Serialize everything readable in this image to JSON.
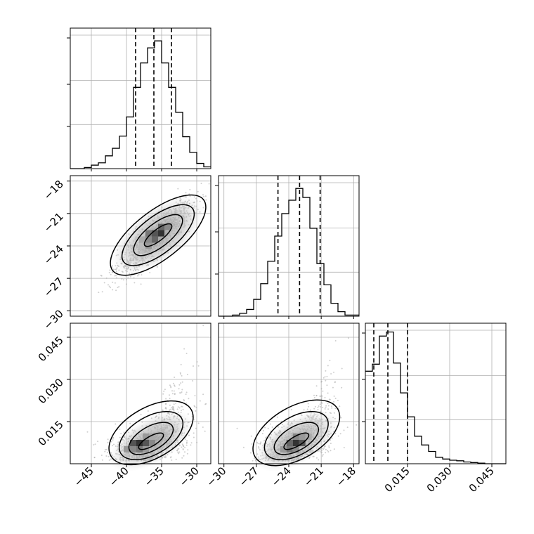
{
  "chart_data": {
    "type": "corner",
    "parameters": [
      {
        "range": [
          -48,
          -28
        ],
        "ticks": [
          -45,
          -40,
          -35,
          -30
        ],
        "tick_labels": [
          "−45",
          "−40",
          "−35",
          "−30"
        ]
      },
      {
        "range": [
          -30.5,
          -17.5
        ],
        "ticks": [
          -30,
          -27,
          -24,
          -21,
          -18
        ],
        "tick_labels": [
          "−30",
          "−27",
          "−24",
          "−21",
          "−18"
        ]
      },
      {
        "range": [
          0.0,
          0.05
        ],
        "ticks": [
          0.015,
          0.03,
          0.045
        ],
        "tick_labels": [
          "0.015",
          "0.030",
          "0.045"
        ]
      }
    ],
    "grid": true,
    "histograms": [
      {
        "param": 0,
        "edges": [
          -48,
          -47,
          -46,
          -45,
          -44,
          -43,
          -42,
          -41,
          -40,
          -39,
          -38,
          -37,
          -36,
          -35,
          -34,
          -33,
          -32,
          -31,
          -30,
          -29,
          -28
        ],
        "counts": [
          0,
          0,
          2,
          6,
          10,
          22,
          35,
          56,
          89,
          140,
          182,
          208,
          220,
          182,
          140,
          97,
          55,
          28,
          9,
          3
        ],
        "quantiles": [
          -38.7,
          -36.1,
          -33.6
        ]
      },
      {
        "param": 1,
        "edges": [
          -30.5,
          -29.85,
          -29.2,
          -28.55,
          -27.9,
          -27.25,
          -26.6,
          -25.95,
          -25.3,
          -24.65,
          -24.0,
          -23.35,
          -22.7,
          -22.05,
          -21.4,
          -20.75,
          -20.1,
          -19.45,
          -18.8,
          -18.15,
          -17.5
        ],
        "counts": [
          0,
          0,
          2,
          5,
          12,
          30,
          58,
          98,
          143,
          183,
          207,
          228,
          212,
          157,
          94,
          56,
          23,
          8,
          2,
          2
        ],
        "quantiles": [
          -25.0,
          -23.0,
          -21.1
        ]
      },
      {
        "param": 2,
        "edges": [
          0.0,
          0.0025,
          0.005,
          0.0075,
          0.01,
          0.0125,
          0.015,
          0.0175,
          0.02,
          0.0225,
          0.025,
          0.0275,
          0.03,
          0.0325,
          0.035,
          0.0375,
          0.04,
          0.0425,
          0.045,
          0.0475,
          0.05
        ],
        "counts": [
          158,
          170,
          218,
          225,
          172,
          121,
          80,
          47,
          32,
          21,
          11,
          8,
          6,
          5,
          3,
          2,
          1,
          0,
          0,
          0
        ],
        "ylim": [
          0,
          240
        ],
        "quantiles": [
          0.003,
          0.008,
          0.015
        ]
      }
    ],
    "pairs": [
      {
        "x_param": 0,
        "y_param": 1,
        "peak": [
          -35.5,
          -22.8
        ]
      },
      {
        "x_param": 0,
        "y_param": 2,
        "peak": [
          -37.5,
          0.007
        ]
      },
      {
        "x_param": 1,
        "y_param": 2,
        "peak": [
          -23.5,
          0.007
        ]
      }
    ]
  }
}
